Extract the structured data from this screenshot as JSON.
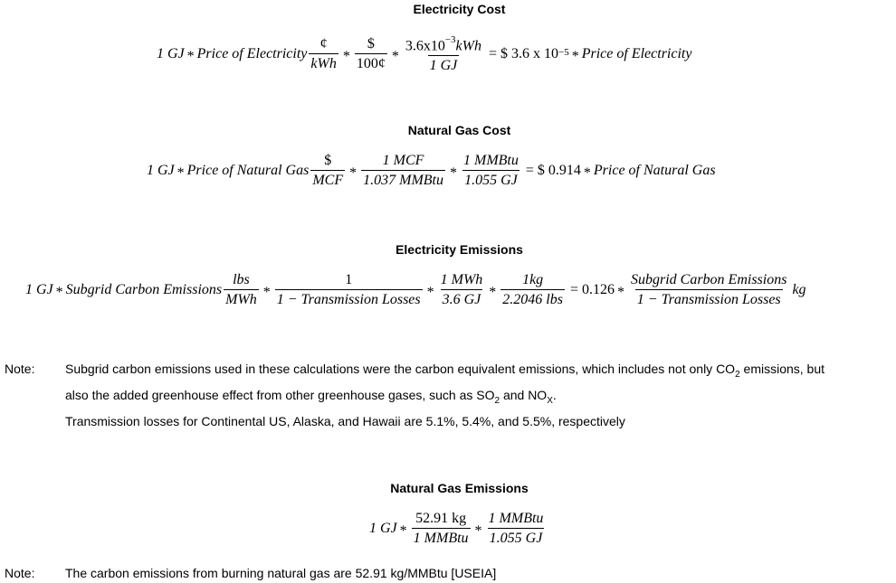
{
  "sections": {
    "electricity_cost": {
      "heading": "Electricity Cost",
      "lhs": "1 GJ",
      "term": "Price of Electricity",
      "f1_num": "¢",
      "f1_den": "kWh",
      "f2_num": "$",
      "f2_den": "100¢",
      "f3_num_base": "3.6x10",
      "f3_num_exp": "−3",
      "f3_num_unit": "kWh",
      "f3_den": "1 GJ",
      "result_base": "$ 3.6 x 10",
      "result_exp": "−5",
      "result_term": "Price of Electricity"
    },
    "natural_gas_cost": {
      "heading": "Natural Gas Cost",
      "lhs": "1 GJ",
      "term": "Price of Natural Gas",
      "f1_num": "$",
      "f1_den": "MCF",
      "f2_num": "1 MCF",
      "f2_den": "1.037 MMBtu",
      "f3_num": "1 MMBtu",
      "f3_den": "1.055 GJ",
      "result_value": "$ 0.914",
      "result_term": "Price of Natural Gas"
    },
    "electricity_emissions": {
      "heading": "Electricity Emissions",
      "lhs": "1 GJ",
      "term": "Subgrid Carbon Emissions",
      "f1_num": "lbs",
      "f1_den": "MWh",
      "f2_num": "1",
      "f2_den": "1 − Transmission Losses",
      "f3_num": "1 MWh",
      "f3_den": "3.6 GJ",
      "f4_num": "1kg",
      "f4_den": "2.2046 lbs",
      "result_value": "0.126",
      "result_num": "Subgrid Carbon Emissions",
      "result_den": "1 − Transmission Losses",
      "result_unit": "kg"
    },
    "note1": {
      "label": "Note:",
      "line1_a": "Subgrid carbon emissions used in these calculations were the carbon equivalent emissions, which includes not only CO",
      "line1_sub": "2",
      "line1_b": " emissions, but",
      "line2_a": "also the added greenhouse effect from other greenhouse gases, such as SO",
      "line2_sub1": "2",
      "line2_b": " and NO",
      "line2_sub2": "X",
      "line2_c": ".",
      "line3": "Transmission losses for Continental US, Alaska, and Hawaii are 5.1%, 5.4%, and 5.5%, respectively"
    },
    "natural_gas_emissions": {
      "heading": "Natural Gas Emissions",
      "lhs": "1 GJ",
      "f1_num": "52.91 kg",
      "f1_den": "1 MMBtu",
      "f2_num": "1 MMBtu",
      "f2_den": "1.055 GJ"
    },
    "note2": {
      "label": "Note:",
      "text": "The carbon emissions from burning natural gas are 52.91 kg/MMBtu [USEIA]"
    }
  }
}
